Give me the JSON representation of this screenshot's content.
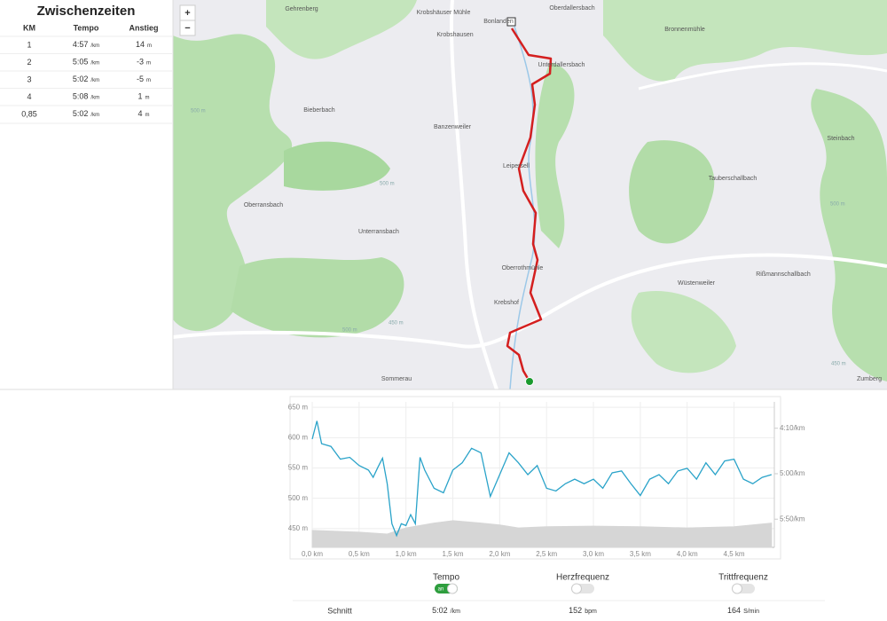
{
  "splits": {
    "title": "Zwischenzeiten",
    "columns": [
      "KM",
      "Tempo",
      "Anstieg"
    ],
    "rows": [
      {
        "km": "1",
        "pace": "4:57",
        "pace_unit": "/km",
        "climb": "14",
        "climb_unit": "m"
      },
      {
        "km": "2",
        "pace": "5:05",
        "pace_unit": "/km",
        "climb": "-3",
        "climb_unit": "m"
      },
      {
        "km": "3",
        "pace": "5:02",
        "pace_unit": "/km",
        "climb": "-5",
        "climb_unit": "m"
      },
      {
        "km": "4",
        "pace": "5:08",
        "pace_unit": "/km",
        "climb": "1",
        "climb_unit": "m"
      },
      {
        "km": "0,85",
        "pace": "5:02",
        "pace_unit": "/km",
        "climb": "4",
        "climb_unit": "m"
      }
    ]
  },
  "map": {
    "zoom": [
      "+",
      "−"
    ],
    "places": [
      "Gehrenberg",
      "Krobshäuser Mühle",
      "Bonlanden",
      "Oberdallersbach",
      "Krobshausen",
      "Bronnenmühle",
      "Unterdallersbach",
      "Bieberbach",
      "Banzenweiler",
      "Steinbach",
      "Leipersell",
      "Tauberschallbach",
      "Oberransbach",
      "Unterransbach",
      "Oberrothmühle",
      "Wüstenweiler",
      "Rißmannschallbach",
      "Krebshof",
      "Sommerau",
      "Zumberg"
    ],
    "contours": [
      "500 m",
      "500 m",
      "450 m",
      "500 m",
      "500 m",
      "450 m"
    ]
  },
  "chart_data": {
    "type": "line",
    "series": [
      {
        "name": "Tempo",
        "color": "#2aa3c9",
        "axis": "y2",
        "x": [
          0,
          0.05,
          0.1,
          0.2,
          0.3,
          0.4,
          0.5,
          0.6,
          0.65,
          0.7,
          0.75,
          0.8,
          0.85,
          0.9,
          0.95,
          1.0,
          1.05,
          1.1,
          1.15,
          1.2,
          1.3,
          1.4,
          1.5,
          1.6,
          1.7,
          1.8,
          1.9,
          2.0,
          2.1,
          2.2,
          2.3,
          2.4,
          2.5,
          2.6,
          2.7,
          2.8,
          2.9,
          3.0,
          3.1,
          3.2,
          3.3,
          3.4,
          3.5,
          3.6,
          3.7,
          3.8,
          3.9,
          4.0,
          4.1,
          4.2,
          4.3,
          4.4,
          4.5,
          4.6,
          4.7,
          4.8,
          4.9
        ],
        "values": [
          262,
          242,
          267,
          270,
          284,
          282,
          291,
          296,
          304,
          293,
          283,
          311,
          355,
          368,
          355,
          357,
          345,
          355,
          282,
          296,
          316,
          321,
          296,
          288,
          272,
          277,
          325,
          301,
          277,
          288,
          301,
          291,
          316,
          319,
          311,
          306,
          311,
          306,
          316,
          299,
          297,
          311,
          324,
          306,
          301,
          311,
          297,
          294,
          306,
          288,
          301,
          286,
          284,
          306,
          311,
          304,
          301
        ]
      },
      {
        "type": "area",
        "color": "#d6d6d6",
        "x": [
          0,
          0.5,
          0.8,
          1.0,
          1.3,
          1.5,
          1.8,
          2.0,
          2.2,
          2.5,
          3.0,
          3.5,
          4.0,
          4.5,
          4.9
        ],
        "values": [
          447,
          444,
          441,
          451,
          459,
          463,
          459,
          456,
          451,
          453,
          454,
          453,
          451,
          453,
          459
        ]
      }
    ],
    "xlim": [
      0,
      4.93
    ],
    "xticks": [
      {
        "value": 0,
        "label": "0,0 km"
      },
      {
        "value": 0.5,
        "label": "0,5 km"
      },
      {
        "value": 1,
        "label": "1,0 km"
      },
      {
        "value": 1.5,
        "label": "1,5 km"
      },
      {
        "value": 2,
        "label": "2,0 km"
      },
      {
        "value": 2.5,
        "label": "2,5 km"
      },
      {
        "value": 3,
        "label": "3,0 km"
      },
      {
        "value": 3.5,
        "label": "3,5 km"
      },
      {
        "value": 4,
        "label": "4,0 km"
      },
      {
        "value": 4.5,
        "label": "4,5 km"
      }
    ],
    "ylim": [
      419,
      659
    ],
    "yticks": [
      {
        "value": 450,
        "label": "450 m"
      },
      {
        "value": 500,
        "label": "500 m"
      },
      {
        "value": 550,
        "label": "550 m"
      },
      {
        "value": 600,
        "label": "600 m"
      },
      {
        "value": 650,
        "label": "650 m"
      }
    ],
    "y2lim": [
      381,
      221
    ],
    "y2ticks": [
      {
        "value": 250,
        "label": "4:10/km"
      },
      {
        "value": 300,
        "label": "5:00/km"
      },
      {
        "value": 350,
        "label": "5:50/km"
      }
    ],
    "grid": true
  },
  "toggles": [
    {
      "state": "an",
      "on": true
    },
    {
      "label": "Herzfrequenz",
      "on": false
    },
    {
      "label": "Trittfrequenz",
      "on": false
    }
  ],
  "summary": {
    "label": "Schnitt",
    "items": [
      {
        "value": "5:02",
        "unit": "/km"
      },
      {
        "value": "152",
        "unit": "bpm"
      },
      {
        "value": "164",
        "unit": "S/min"
      }
    ]
  }
}
